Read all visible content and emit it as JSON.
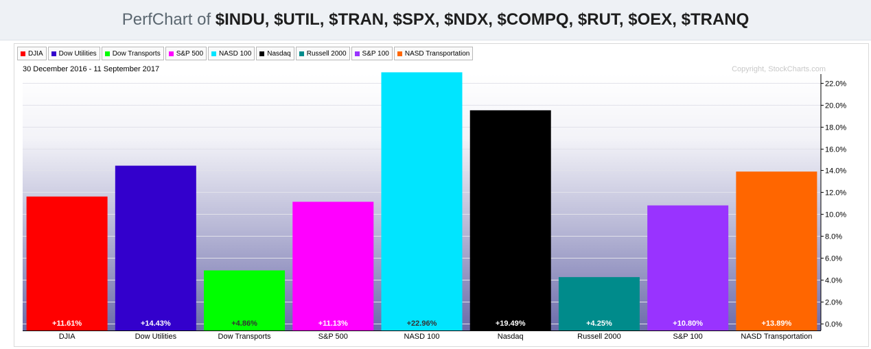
{
  "header": {
    "title_prefix": "PerfChart of ",
    "title_symbols": "$INDU, $UTIL, $TRAN, $SPX, $NDX, $COMPQ, $RUT, $OEX, $TRANQ"
  },
  "chart_data": {
    "type": "bar",
    "date_range": "30 December 2016 - 11 September 2017",
    "copyright": "Copyright, StockCharts.com",
    "ylim": [
      0,
      22.8
    ],
    "yticks": [
      0,
      2,
      4,
      6,
      8,
      10,
      12,
      14,
      16,
      18,
      20,
      22
    ],
    "ytick_labels": [
      "0.0%",
      "2.0%",
      "4.0%",
      "6.0%",
      "8.0%",
      "10.0%",
      "12.0%",
      "14.0%",
      "16.0%",
      "18.0%",
      "20.0%",
      "22.0%"
    ],
    "grid": true,
    "legend_position": "top-left",
    "categories": [
      "DJIA",
      "Dow Utilities",
      "Dow Transports",
      "S&P 500",
      "NASD 100",
      "Nasdaq",
      "Russell 2000",
      "S&P 100",
      "NASD Transportation"
    ],
    "values": [
      11.61,
      14.43,
      4.86,
      11.13,
      22.96,
      19.49,
      4.25,
      10.8,
      13.89
    ],
    "value_labels": [
      "+11.61%",
      "+14.43%",
      "+4.86%",
      "+11.13%",
      "+22.96%",
      "+19.49%",
      "+4.25%",
      "+10.80%",
      "+13.89%"
    ],
    "colors": [
      "#ff0000",
      "#3300cc",
      "#00ff00",
      "#ff00ff",
      "#00e5ff",
      "#000000",
      "#008b8b",
      "#9933ff",
      "#ff6600"
    ]
  }
}
